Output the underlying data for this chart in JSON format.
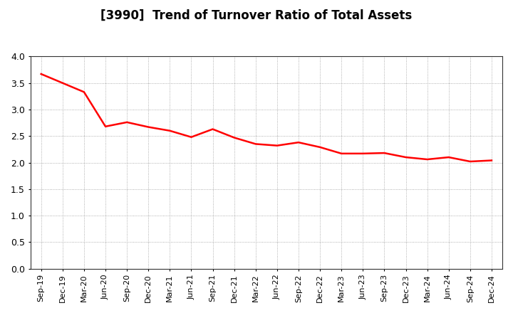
{
  "title": "[3990]  Trend of Turnover Ratio of Total Assets",
  "line_color": "#FF0000",
  "line_width": 1.8,
  "background_color": "#FFFFFF",
  "grid_color": "#999999",
  "ylim": [
    0.0,
    4.0
  ],
  "yticks": [
    0.0,
    0.5,
    1.0,
    1.5,
    2.0,
    2.5,
    3.0,
    3.5,
    4.0
  ],
  "labels": [
    "Sep-19",
    "Dec-19",
    "Mar-20",
    "Jun-20",
    "Sep-20",
    "Dec-20",
    "Mar-21",
    "Jun-21",
    "Sep-21",
    "Dec-21",
    "Mar-22",
    "Jun-22",
    "Sep-22",
    "Dec-22",
    "Mar-23",
    "Jun-23",
    "Sep-23",
    "Dec-23",
    "Mar-24",
    "Jun-24",
    "Sep-24",
    "Dec-24"
  ],
  "values": [
    3.67,
    3.5,
    3.33,
    2.68,
    2.76,
    2.67,
    2.6,
    2.48,
    2.63,
    2.47,
    2.35,
    2.32,
    2.38,
    2.29,
    2.17,
    2.17,
    2.18,
    2.1,
    2.06,
    2.1,
    2.02,
    2.04
  ]
}
